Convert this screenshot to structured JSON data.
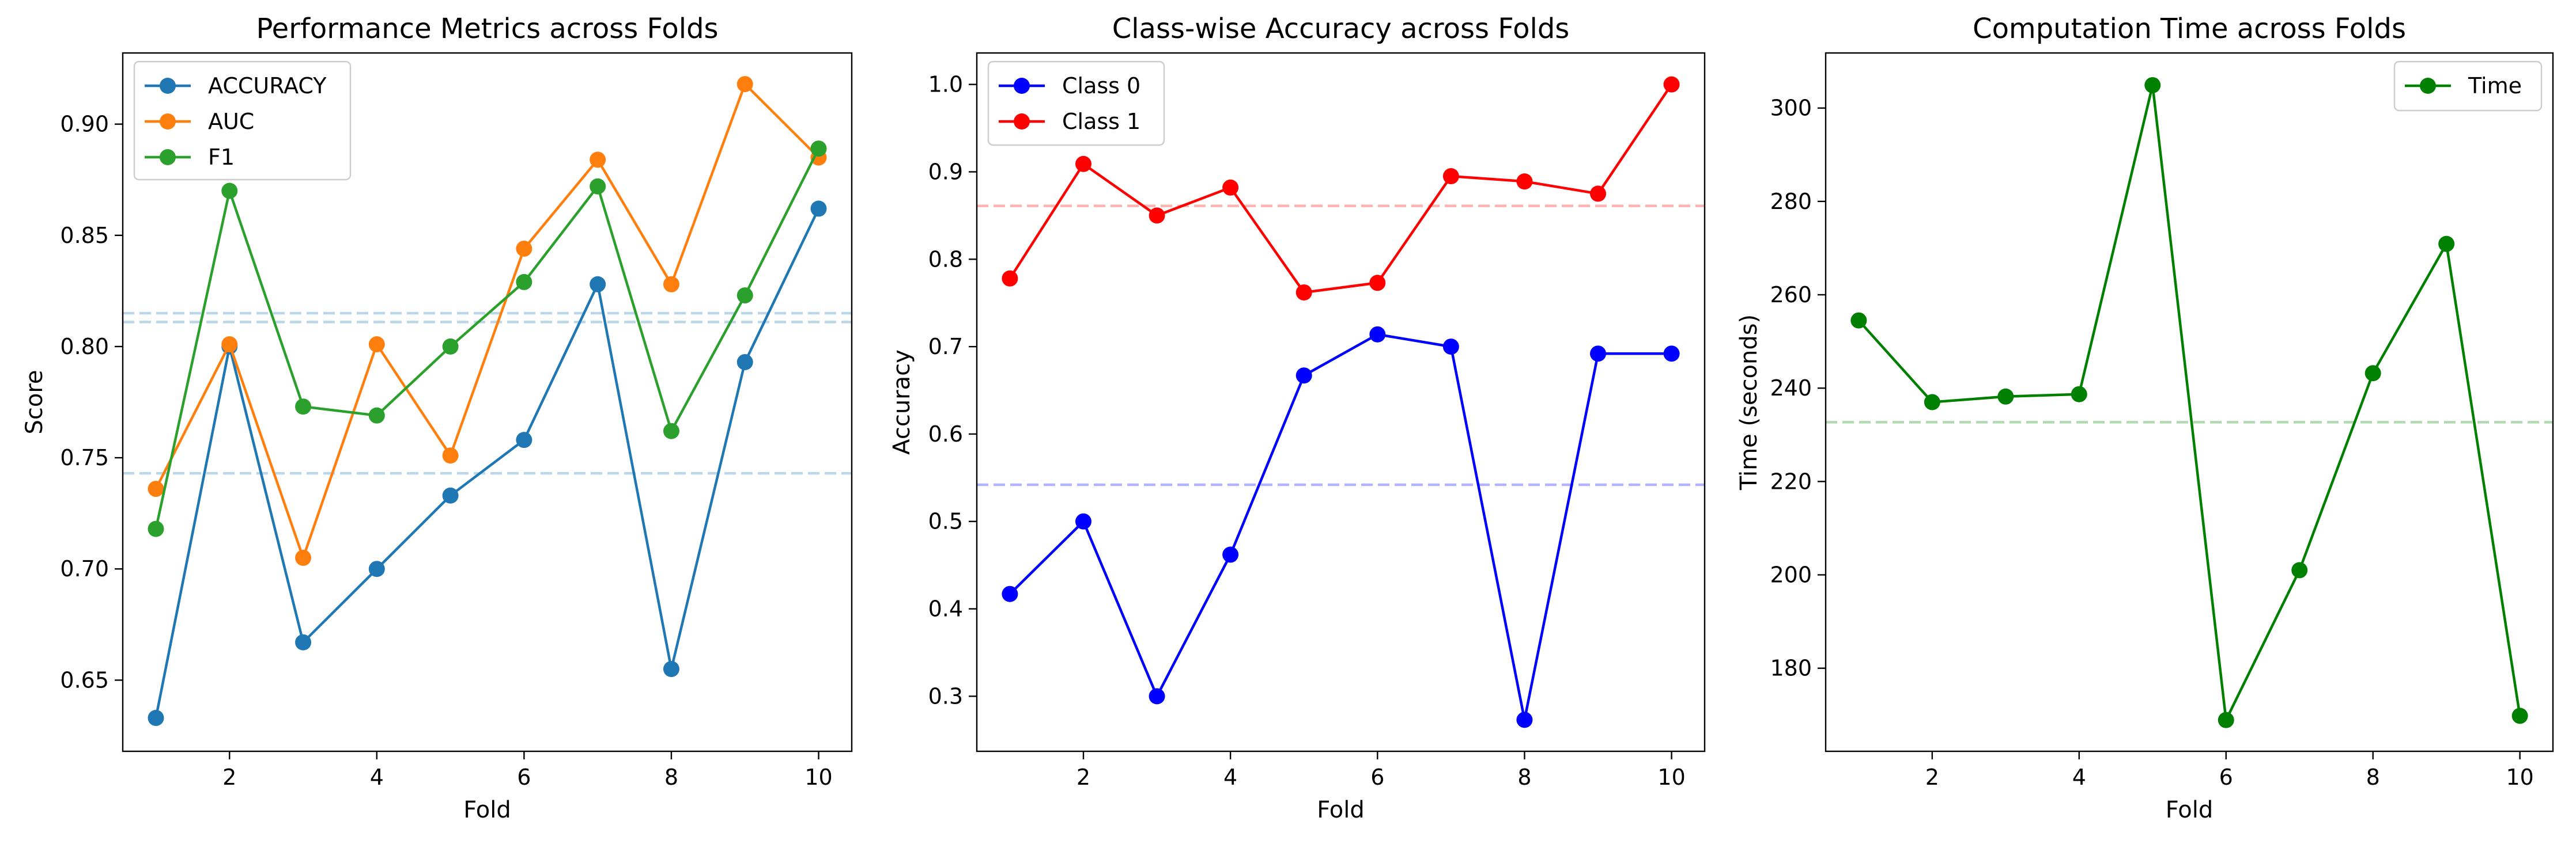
{
  "chart_data": [
    {
      "type": "line",
      "title": "Performance Metrics across Folds",
      "xlabel": "Fold",
      "ylabel": "Score",
      "x": [
        1,
        2,
        3,
        4,
        5,
        6,
        7,
        8,
        9,
        10
      ],
      "xlim": [
        0.55,
        10.45
      ],
      "ylim": [
        0.618,
        0.932
      ],
      "xticks": [
        2,
        4,
        6,
        8,
        10
      ],
      "yticks": [
        0.65,
        0.7,
        0.75,
        0.8,
        0.85,
        0.9
      ],
      "ytick_labels": [
        "0.65",
        "0.70",
        "0.75",
        "0.80",
        "0.85",
        "0.90"
      ],
      "grid": false,
      "legend_position": "upper-left",
      "series": [
        {
          "name": "ACCURACY",
          "color": "#1f77b4",
          "values": [
            0.633,
            0.8,
            0.667,
            0.7,
            0.733,
            0.758,
            0.828,
            0.655,
            0.793,
            0.862
          ]
        },
        {
          "name": "AUC",
          "color": "#ff7f0e",
          "values": [
            0.736,
            0.801,
            0.705,
            0.801,
            0.751,
            0.844,
            0.884,
            0.828,
            0.918,
            0.885
          ]
        },
        {
          "name": "F1",
          "color": "#2ca02c",
          "values": [
            0.718,
            0.87,
            0.773,
            0.769,
            0.8,
            0.829,
            0.872,
            0.762,
            0.823,
            0.889
          ]
        }
      ],
      "reference_lines": [
        {
          "y": 0.743,
          "color": "#1f77b4"
        },
        {
          "y": 0.811,
          "color": "#1f77b4"
        },
        {
          "y": 0.815,
          "color": "#1f77b4"
        }
      ]
    },
    {
      "type": "line",
      "title": "Class-wise Accuracy across Folds",
      "xlabel": "Fold",
      "ylabel": "Accuracy",
      "x": [
        1,
        2,
        3,
        4,
        5,
        6,
        7,
        8,
        9,
        10
      ],
      "xlim": [
        0.55,
        10.45
      ],
      "ylim": [
        0.237,
        1.036
      ],
      "xticks": [
        2,
        4,
        6,
        8,
        10
      ],
      "yticks": [
        0.3,
        0.4,
        0.5,
        0.6,
        0.7,
        0.8,
        0.9,
        1.0
      ],
      "ytick_labels": [
        "0.3",
        "0.4",
        "0.5",
        "0.6",
        "0.7",
        "0.8",
        "0.9",
        "1.0"
      ],
      "grid": false,
      "legend_position": "upper-left",
      "series": [
        {
          "name": "Class 0",
          "color": "#0000ff",
          "values": [
            0.417,
            0.5,
            0.3,
            0.462,
            0.667,
            0.714,
            0.7,
            0.273,
            0.692,
            0.692
          ]
        },
        {
          "name": "Class 1",
          "color": "#ff0000",
          "values": [
            0.778,
            0.909,
            0.85,
            0.882,
            0.762,
            0.773,
            0.895,
            0.889,
            0.875,
            1.0
          ]
        }
      ],
      "reference_lines": [
        {
          "y": 0.542,
          "color": "#0000ff"
        },
        {
          "y": 0.861,
          "color": "#ff0000"
        }
      ]
    },
    {
      "type": "line",
      "title": "Computation Time across Folds",
      "xlabel": "Fold",
      "ylabel": "Time (seconds)",
      "x": [
        1,
        2,
        3,
        4,
        5,
        6,
        7,
        8,
        9,
        10
      ],
      "xlim": [
        0.55,
        10.45
      ],
      "ylim": [
        162.2,
        311.8
      ],
      "xticks": [
        2,
        4,
        6,
        8,
        10
      ],
      "yticks": [
        180,
        200,
        220,
        240,
        260,
        280,
        300
      ],
      "ytick_labels": [
        "180",
        "200",
        "220",
        "240",
        "260",
        "280",
        "300"
      ],
      "grid": false,
      "legend_position": "upper-right",
      "series": [
        {
          "name": "Time",
          "color": "#008000",
          "values": [
            254.5,
            237.0,
            238.2,
            238.7,
            304.9,
            168.9,
            201.0,
            243.2,
            270.9,
            169.8
          ]
        }
      ],
      "reference_lines": [
        {
          "y": 232.7,
          "color": "#008000"
        }
      ]
    }
  ]
}
